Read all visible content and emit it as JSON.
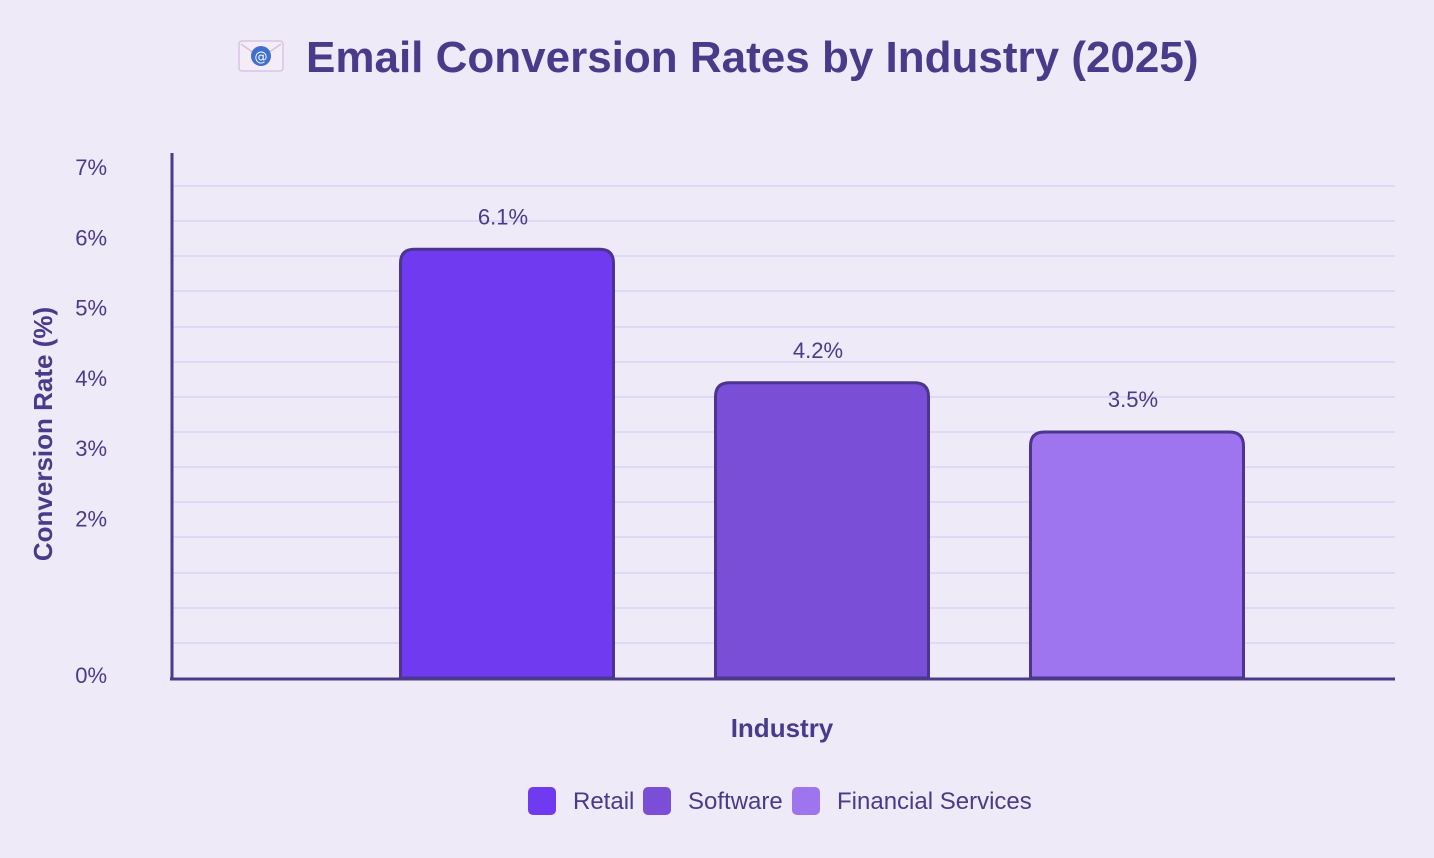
{
  "colors": {
    "background": "#eeeaf8",
    "text": "#4a3a8a",
    "axis": "#4a3a8a",
    "grid": "#d9d3f3",
    "bar_stroke": "#4c3590"
  },
  "title_icon": "envelope-icon",
  "chart_data": {
    "type": "bar",
    "title": "Email Conversion Rates by Industry (2025)",
    "xlabel": "Industry",
    "ylabel": "Conversion Rate (%)",
    "ylim": [
      0,
      7
    ],
    "yticks": [
      {
        "value": 0,
        "label": "0%"
      },
      {
        "value": 2,
        "label": "2%"
      },
      {
        "value": 3,
        "label": "3%"
      },
      {
        "value": 4,
        "label": "4%"
      },
      {
        "value": 5,
        "label": "5%"
      },
      {
        "value": 6,
        "label": "6%"
      },
      {
        "value": 7,
        "label": "7%"
      }
    ],
    "grid": true,
    "categories": [
      "Retail",
      "Software",
      "Financial Services"
    ],
    "values": [
      6.1,
      4.2,
      3.5
    ],
    "value_labels": [
      "6.1%",
      "4.2%",
      "3.5%"
    ],
    "bar_colors": [
      "#6f3af0",
      "#7a4ed6",
      "#9e74ef"
    ],
    "legend_position": "bottom-center"
  }
}
